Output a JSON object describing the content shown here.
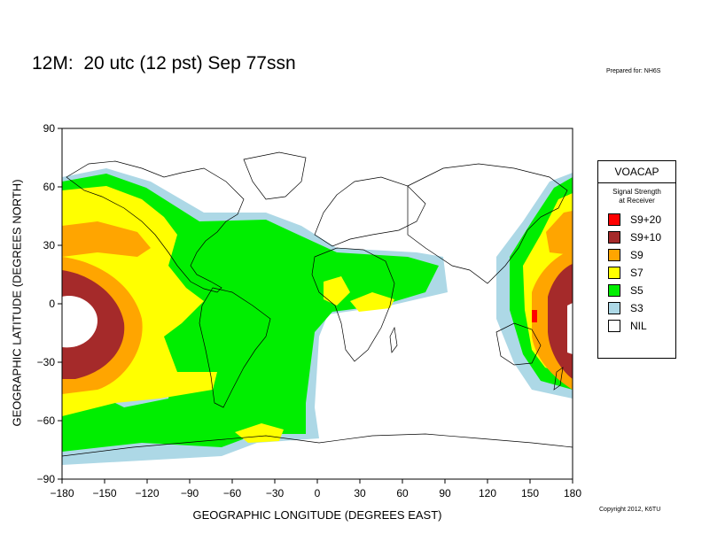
{
  "title": "12M:  20 utc (12 pst) Sep 77ssn",
  "prepared_for": "Prepared for: NH6S",
  "copyright": "Copyright 2012, K6TU",
  "chart_data": {
    "type": "map",
    "xlabel": "GEOGRAPHIC LONGITUDE (DEGREES EAST)",
    "ylabel": "GEOGRAPHIC LATITUDE (DEGREES NORTH)",
    "xlim": [
      -180,
      180
    ],
    "ylim": [
      -90,
      90
    ],
    "xticks": [
      "−180",
      "−150",
      "−120",
      "−90",
      "−60",
      "−30",
      "0",
      "30",
      "60",
      "90",
      "120",
      "150",
      "180"
    ],
    "yticks": [
      "90",
      "60",
      "30",
      "0",
      "−30",
      "−60",
      "−90"
    ],
    "legend": {
      "title": "VOACAP",
      "subtitle_line1": "Signal Strength",
      "subtitle_line2": "at Receiver",
      "placement": "right",
      "items": [
        {
          "label": "S9+20",
          "color": "#ff0000"
        },
        {
          "label": "S9+10",
          "color": "#a52a2a"
        },
        {
          "label": "S9",
          "color": "#ffa500"
        },
        {
          "label": "S7",
          "color": "#ffff00"
        },
        {
          "label": "S5",
          "color": "#00ee00"
        },
        {
          "label": "S3",
          "color": "#add8e6"
        },
        {
          "label": "NIL",
          "color": "#ffffff"
        }
      ]
    }
  }
}
